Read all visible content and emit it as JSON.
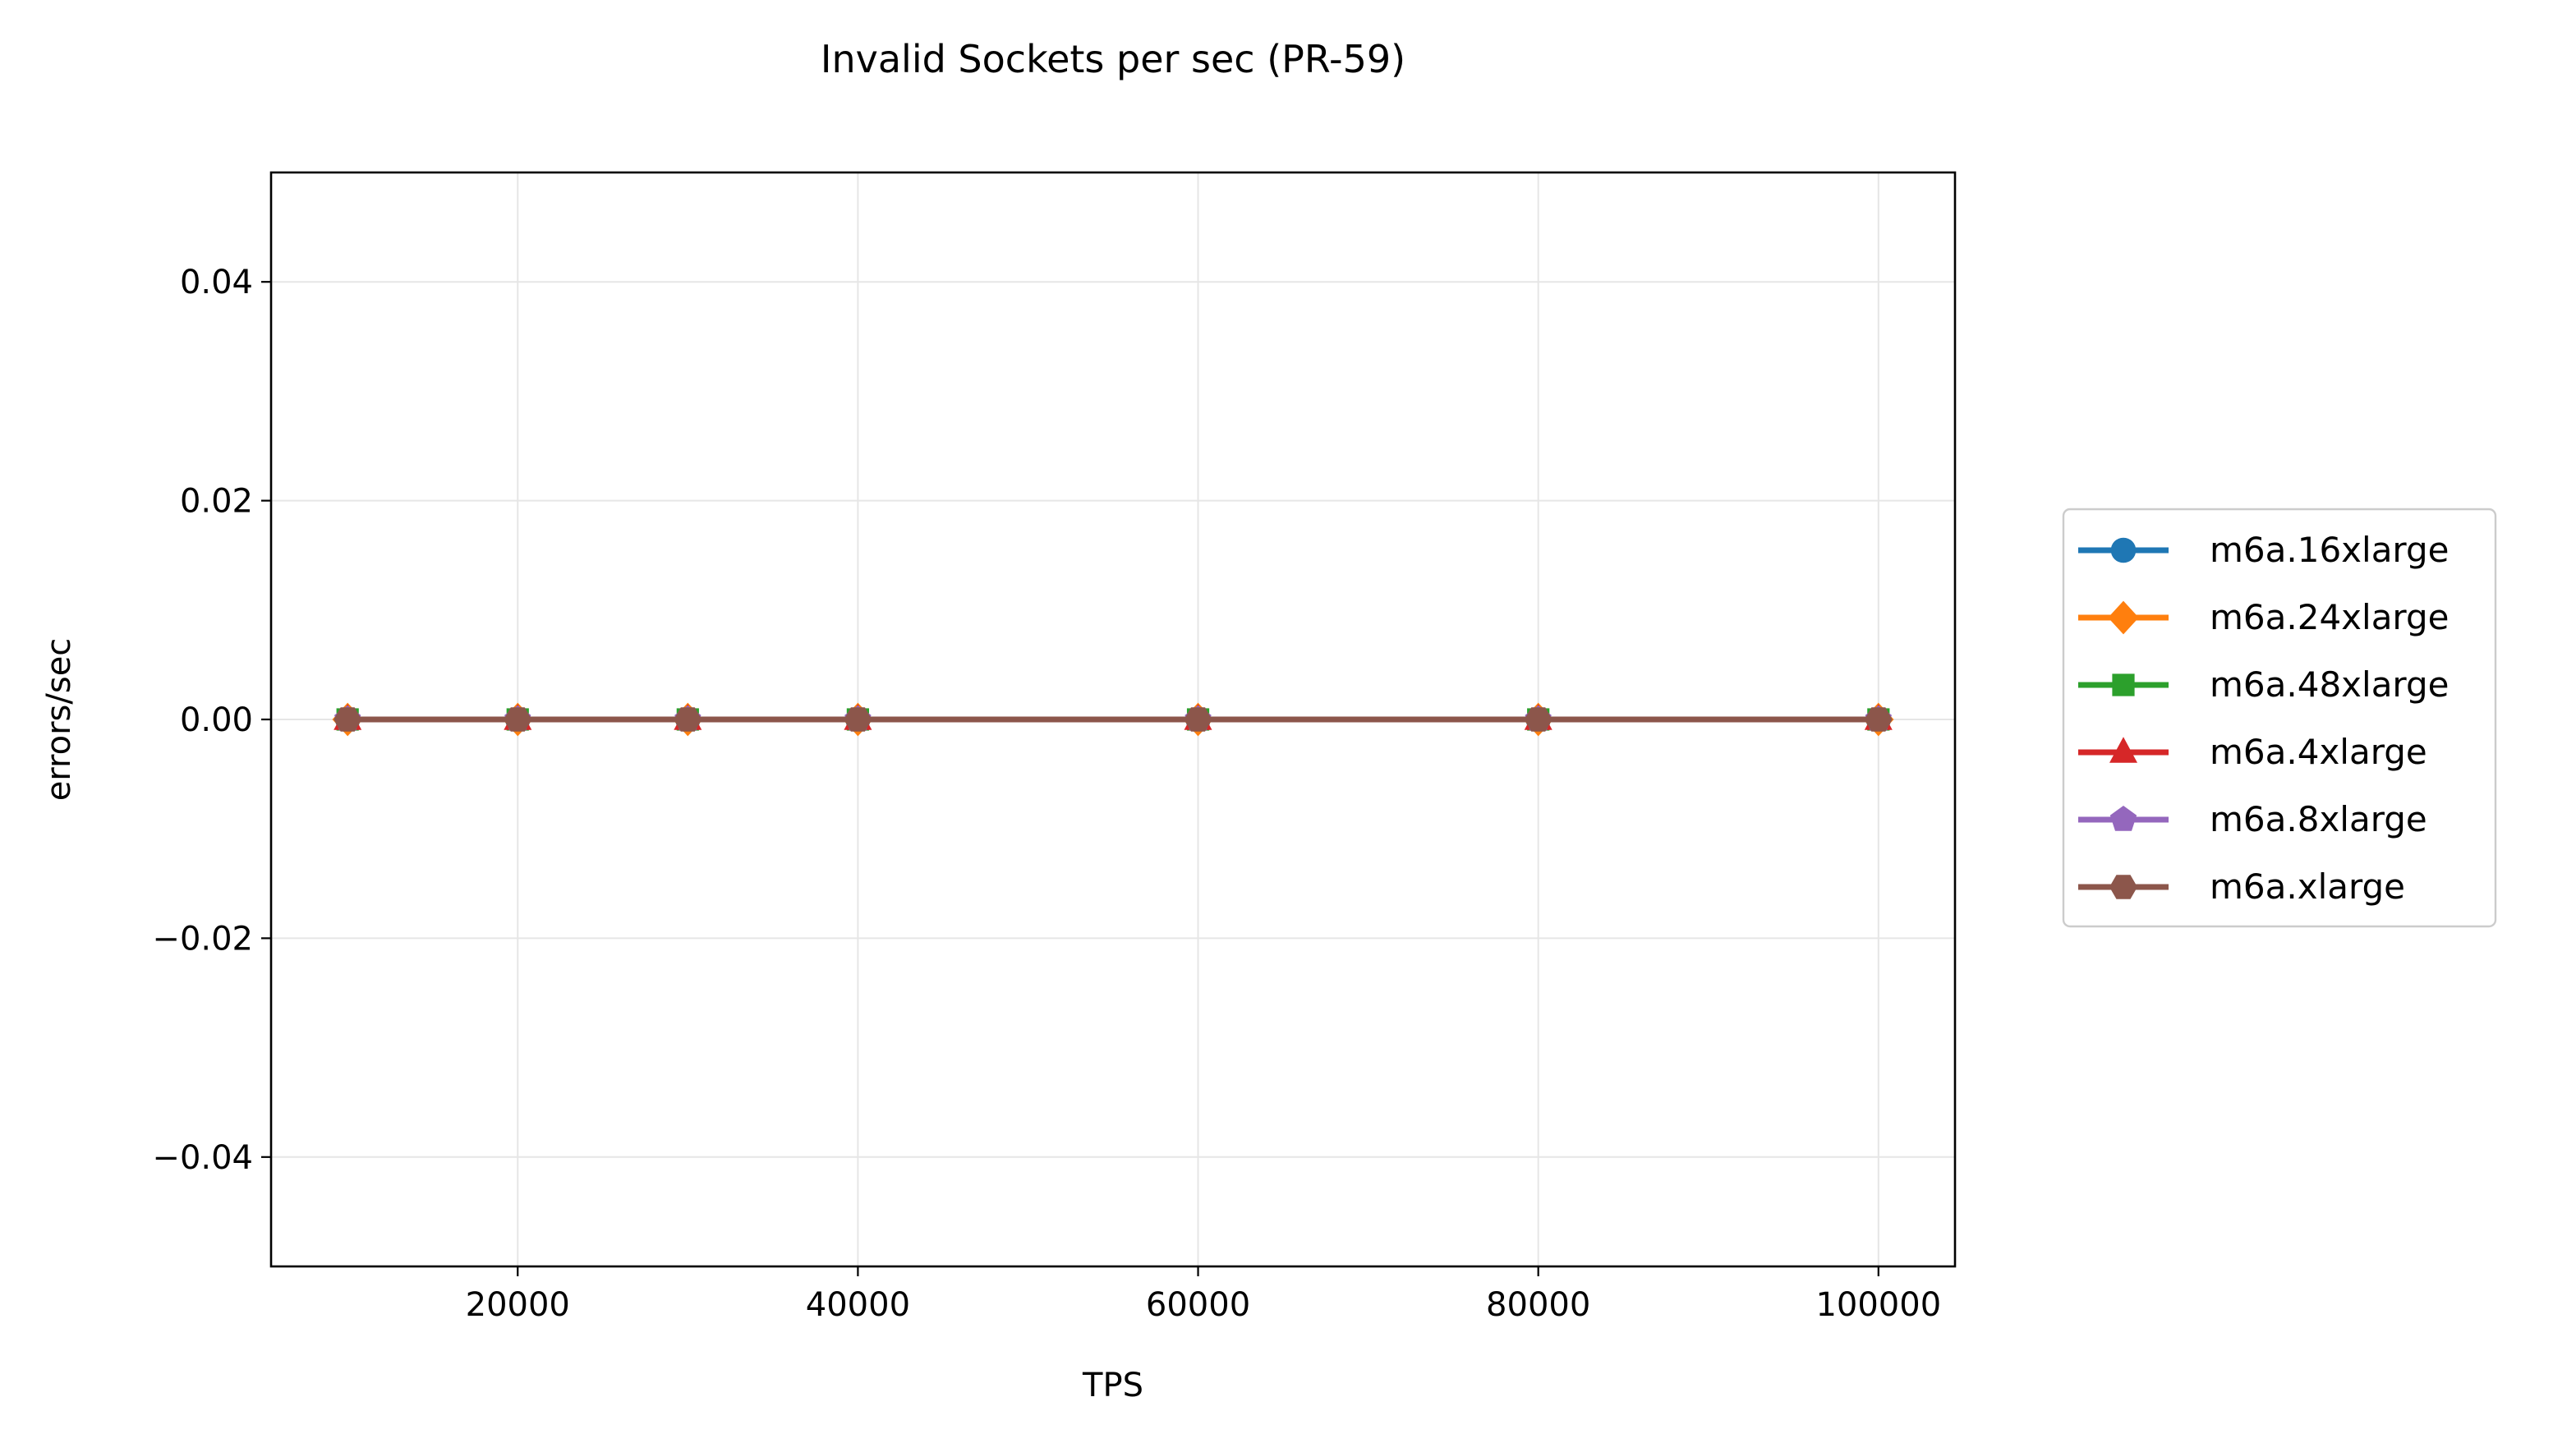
{
  "chart_data": {
    "type": "line",
    "title": "Invalid Sockets per sec (PR-59)",
    "xlabel": "TPS",
    "ylabel": "errors/sec",
    "xlim": [
      5500,
      104500
    ],
    "ylim": [
      -0.05,
      0.05
    ],
    "xticks": [
      20000,
      40000,
      60000,
      80000,
      100000
    ],
    "xtick_labels": [
      "20000",
      "40000",
      "60000",
      "80000",
      "100000"
    ],
    "yticks": [
      -0.04,
      -0.02,
      0.0,
      0.02,
      0.04
    ],
    "ytick_labels": [
      "−0.04",
      "−0.02",
      "0.00",
      "0.02",
      "0.04"
    ],
    "grid": true,
    "legend_position": "outside-right",
    "x": [
      10000,
      20000,
      30000,
      40000,
      60000,
      80000,
      100000
    ],
    "series": [
      {
        "name": "m6a.16xlarge",
        "values": [
          0,
          0,
          0,
          0,
          0,
          0,
          0
        ],
        "color": "#1f77b4",
        "marker": "circle"
      },
      {
        "name": "m6a.24xlarge",
        "values": [
          0,
          0,
          0,
          0,
          0,
          0,
          0
        ],
        "color": "#ff7f0e",
        "marker": "diamond"
      },
      {
        "name": "m6a.48xlarge",
        "values": [
          0,
          0,
          0,
          0,
          0,
          0,
          0
        ],
        "color": "#2ca02c",
        "marker": "square"
      },
      {
        "name": "m6a.4xlarge",
        "values": [
          0,
          0,
          0,
          0,
          0,
          0,
          0
        ],
        "color": "#d62728",
        "marker": "triangle"
      },
      {
        "name": "m6a.8xlarge",
        "values": [
          0,
          0,
          0,
          0,
          0,
          0,
          0
        ],
        "color": "#9467bd",
        "marker": "pentagon"
      },
      {
        "name": "m6a.xlarge",
        "values": [
          0,
          0,
          0,
          0,
          0,
          0,
          0
        ],
        "color": "#8c564b",
        "marker": "hexagon"
      }
    ]
  }
}
